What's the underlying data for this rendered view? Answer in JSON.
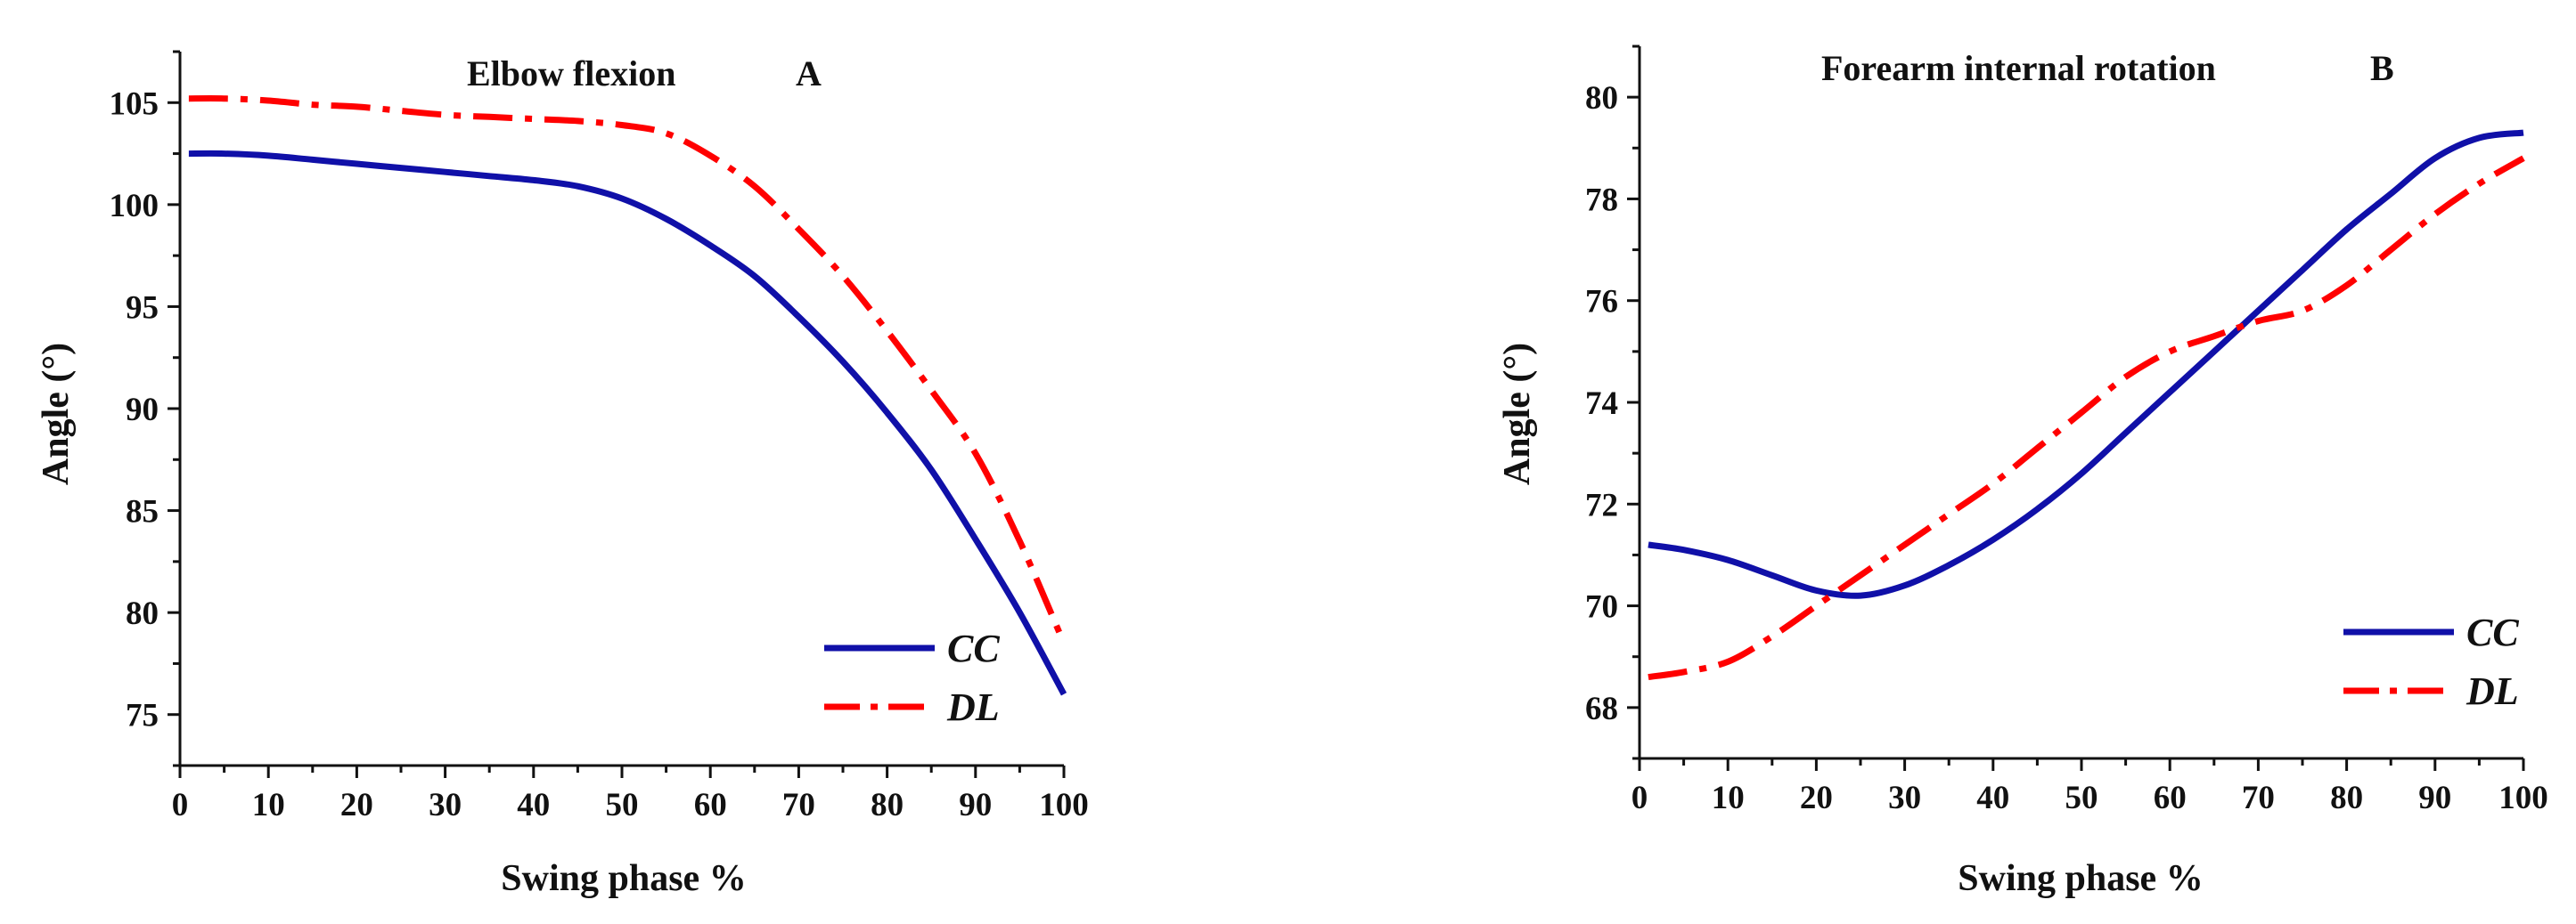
{
  "colors": {
    "cc": "#1010a8",
    "dl": "#ff0000",
    "axis": "#111111"
  },
  "chart_data": [
    {
      "type": "line",
      "title": "Elbow flexion",
      "panel": "A",
      "xlabel": "Swing phase %",
      "ylabel": "Angle (°)",
      "xlim": [
        0,
        100
      ],
      "ylim": [
        72.5,
        107.5
      ],
      "xticks": [
        0,
        10,
        20,
        30,
        40,
        50,
        60,
        70,
        80,
        90,
        100
      ],
      "yticks": [
        75,
        80,
        85,
        90,
        95,
        100,
        105
      ],
      "legend_position": "bottom-right",
      "series": [
        {
          "name": "CC",
          "style": "solid",
          "x": [
            1,
            5,
            10,
            15,
            20,
            25,
            30,
            35,
            40,
            45,
            50,
            55,
            60,
            65,
            70,
            75,
            80,
            85,
            90,
            95,
            100
          ],
          "y": [
            102.5,
            102.5,
            102.4,
            102.2,
            102.0,
            101.8,
            101.6,
            101.4,
            101.2,
            100.9,
            100.3,
            99.3,
            98.0,
            96.5,
            94.5,
            92.3,
            89.8,
            87.0,
            83.6,
            80.0,
            76.0
          ]
        },
        {
          "name": "DL",
          "style": "dashdot",
          "x": [
            1,
            5,
            10,
            15,
            20,
            25,
            30,
            35,
            40,
            45,
            50,
            55,
            60,
            65,
            70,
            75,
            80,
            85,
            90,
            95,
            100
          ],
          "y": [
            105.2,
            105.2,
            105.1,
            104.9,
            104.8,
            104.6,
            104.4,
            104.3,
            104.2,
            104.1,
            103.9,
            103.5,
            102.4,
            100.9,
            98.8,
            96.5,
            93.8,
            90.9,
            87.8,
            83.5,
            78.5
          ]
        }
      ]
    },
    {
      "type": "line",
      "title": "Forearm internal rotation",
      "panel": "B",
      "xlabel": "Swing phase %",
      "ylabel": "Angle (°)",
      "xlim": [
        0,
        100
      ],
      "ylim": [
        67,
        81
      ],
      "xticks": [
        0,
        10,
        20,
        30,
        40,
        50,
        60,
        70,
        80,
        90,
        100
      ],
      "yticks": [
        68,
        70,
        72,
        74,
        76,
        78,
        80
      ],
      "legend_position": "bottom-right",
      "series": [
        {
          "name": "CC",
          "style": "solid",
          "x": [
            1,
            5,
            10,
            15,
            20,
            25,
            30,
            35,
            40,
            45,
            50,
            55,
            60,
            65,
            70,
            75,
            80,
            85,
            90,
            95,
            100
          ],
          "y": [
            71.2,
            71.1,
            70.9,
            70.6,
            70.3,
            70.2,
            70.4,
            70.8,
            71.3,
            71.9,
            72.6,
            73.4,
            74.2,
            75.0,
            75.8,
            76.6,
            77.4,
            78.1,
            78.8,
            79.2,
            79.3
          ]
        },
        {
          "name": "DL",
          "style": "dashdot",
          "x": [
            1,
            5,
            10,
            15,
            20,
            25,
            30,
            35,
            40,
            45,
            50,
            55,
            60,
            65,
            70,
            75,
            80,
            85,
            90,
            95,
            100
          ],
          "y": [
            68.6,
            68.7,
            68.9,
            69.4,
            70.0,
            70.6,
            71.2,
            71.8,
            72.4,
            73.1,
            73.8,
            74.5,
            75.0,
            75.3,
            75.6,
            75.8,
            76.3,
            77.0,
            77.7,
            78.3,
            78.8
          ]
        }
      ]
    }
  ]
}
